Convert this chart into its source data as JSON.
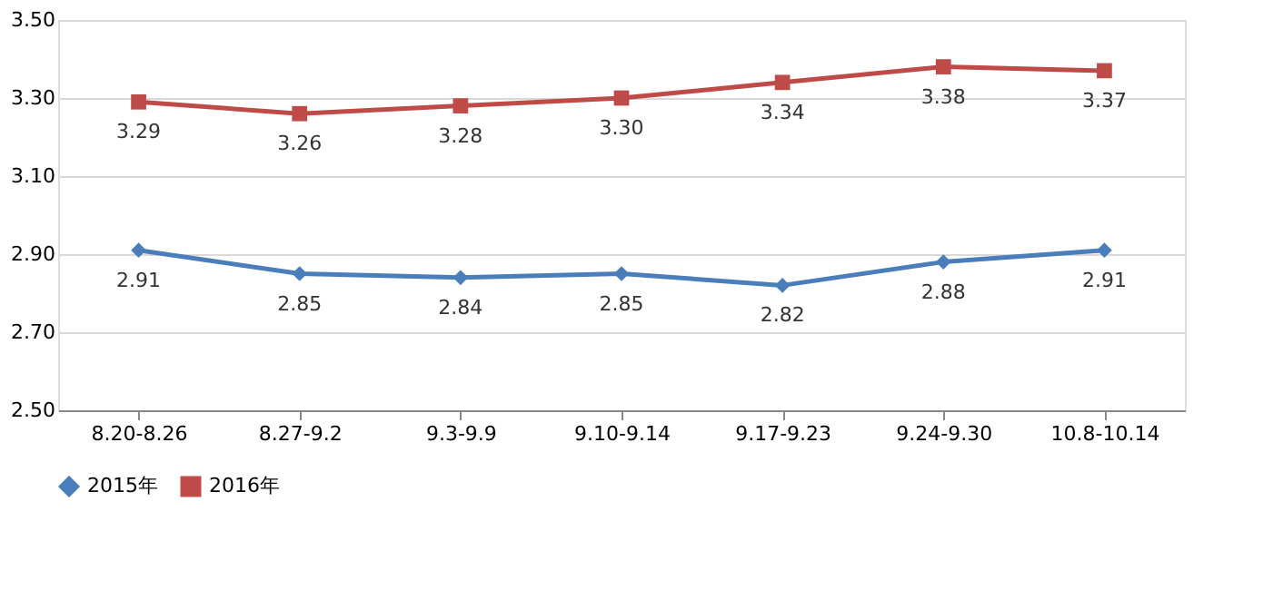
{
  "chart_data": {
    "type": "line",
    "categories": [
      "8.20-8.26",
      "8.27-9.2",
      "9.3-9.9",
      "9.10-9.14",
      "9.17-9.23",
      "9.24-9.30",
      "10.8-10.14"
    ],
    "series": [
      {
        "name": "2015年",
        "color": "#4a7ebb",
        "marker": "diamond",
        "values": [
          2.91,
          2.85,
          2.84,
          2.85,
          2.82,
          2.88,
          2.91
        ],
        "value_labels": [
          "2.91",
          "2.85",
          "2.84",
          "2.85",
          "2.82",
          "2.88",
          "2.91"
        ]
      },
      {
        "name": "2016年",
        "color": "#be4b48",
        "marker": "square",
        "values": [
          3.29,
          3.26,
          3.28,
          3.3,
          3.34,
          3.38,
          3.37
        ],
        "value_labels": [
          "3.29",
          "3.26",
          "3.28",
          "3.30",
          "3.34",
          "3.38",
          "3.37"
        ]
      }
    ],
    "ylim": [
      2.5,
      3.5
    ],
    "yticks": [
      {
        "value": 2.5,
        "label": "2.50"
      },
      {
        "value": 2.7,
        "label": "2.70"
      },
      {
        "value": 2.9,
        "label": "2.90"
      },
      {
        "value": 3.1,
        "label": "3.10"
      },
      {
        "value": 3.3,
        "label": "3.30"
      },
      {
        "value": 3.5,
        "label": "3.50"
      }
    ],
    "grid": "y",
    "legend": "bottom",
    "line_style": "solid"
  }
}
